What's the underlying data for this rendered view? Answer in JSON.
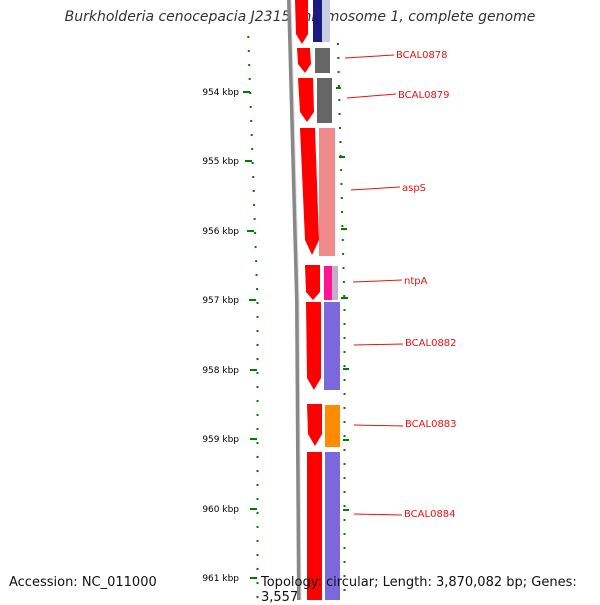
{
  "title": "Burkholderia cenocepacia J2315 chromosome 1, complete genome",
  "accession": "Accession: NC_011000",
  "summary": "Topology: circular; Length: 3,870,082 bp; Genes: 3,557",
  "ruler": {
    "ticks": [
      "954 kbp",
      "955 kbp",
      "956 kbp",
      "957 kbp",
      "958 kbp",
      "959 kbp",
      "960 kbp",
      "961 kbp"
    ]
  },
  "genes": [
    {
      "label": "",
      "cog_color": "#1a1a80"
    },
    {
      "label": "BCAL0878",
      "cog_color": "#666666"
    },
    {
      "label": "BCAL0879",
      "cog_color": "#666666"
    },
    {
      "label": "aspS",
      "cog_color": "#ee8a8a"
    },
    {
      "label": "ntpA",
      "cog_color": "#ff1493"
    },
    {
      "label": "BCAL0882",
      "cog_color": "#7b68dd"
    },
    {
      "label": "BCAL0883",
      "cog_color": "#ff8c00"
    },
    {
      "label": "BCAL0884",
      "cog_color": "#7b68dd"
    }
  ],
  "colors": {
    "strand_arrow": "#ff0000",
    "backbone": "#888888",
    "tick": "#008000",
    "label": "#ee1111"
  }
}
